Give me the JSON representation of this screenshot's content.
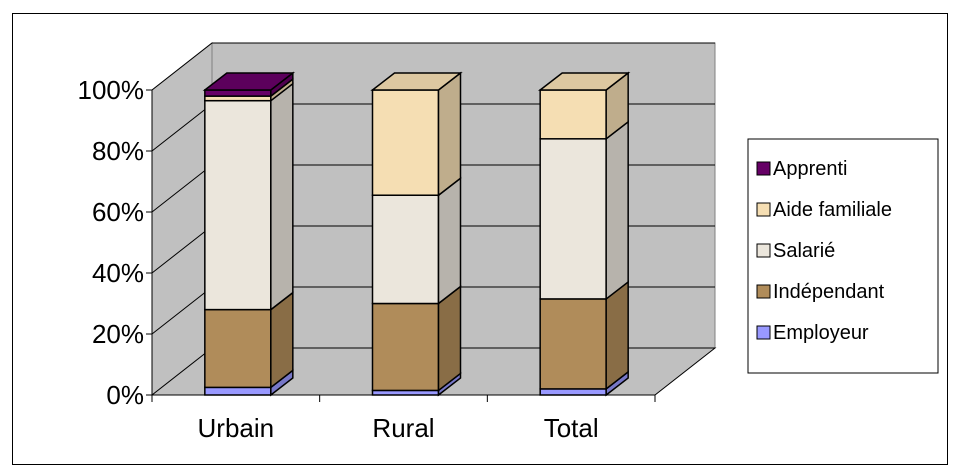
{
  "chart_data": {
    "type": "bar",
    "stacked": true,
    "three_d": true,
    "title": "",
    "xlabel": "",
    "ylabel": "",
    "ylim": [
      0,
      100
    ],
    "y_ticks": [
      "0%",
      "20%",
      "40%",
      "60%",
      "80%",
      "100%"
    ],
    "categories": [
      "Urbain",
      "Rural",
      "Total"
    ],
    "series": [
      {
        "name": "Employeur",
        "values": [
          2.5,
          1.5,
          2.0
        ],
        "color": "#9999ff"
      },
      {
        "name": "Indépendant",
        "values": [
          25.5,
          28.5,
          29.5
        ],
        "color": "#b08c5a"
      },
      {
        "name": "Salarié",
        "values": [
          68.5,
          35.5,
          52.5
        ],
        "color": "#ebe6dc"
      },
      {
        "name": "Aide familiale",
        "values": [
          1.5,
          34.5,
          16.0
        ],
        "color": "#f5deb3"
      },
      {
        "name": "Apprenti",
        "values": [
          2.0,
          0.0,
          0.0
        ],
        "color": "#660066"
      }
    ],
    "legend_position": "right",
    "gridlines": true,
    "wall_color": "#c0c0c0"
  }
}
